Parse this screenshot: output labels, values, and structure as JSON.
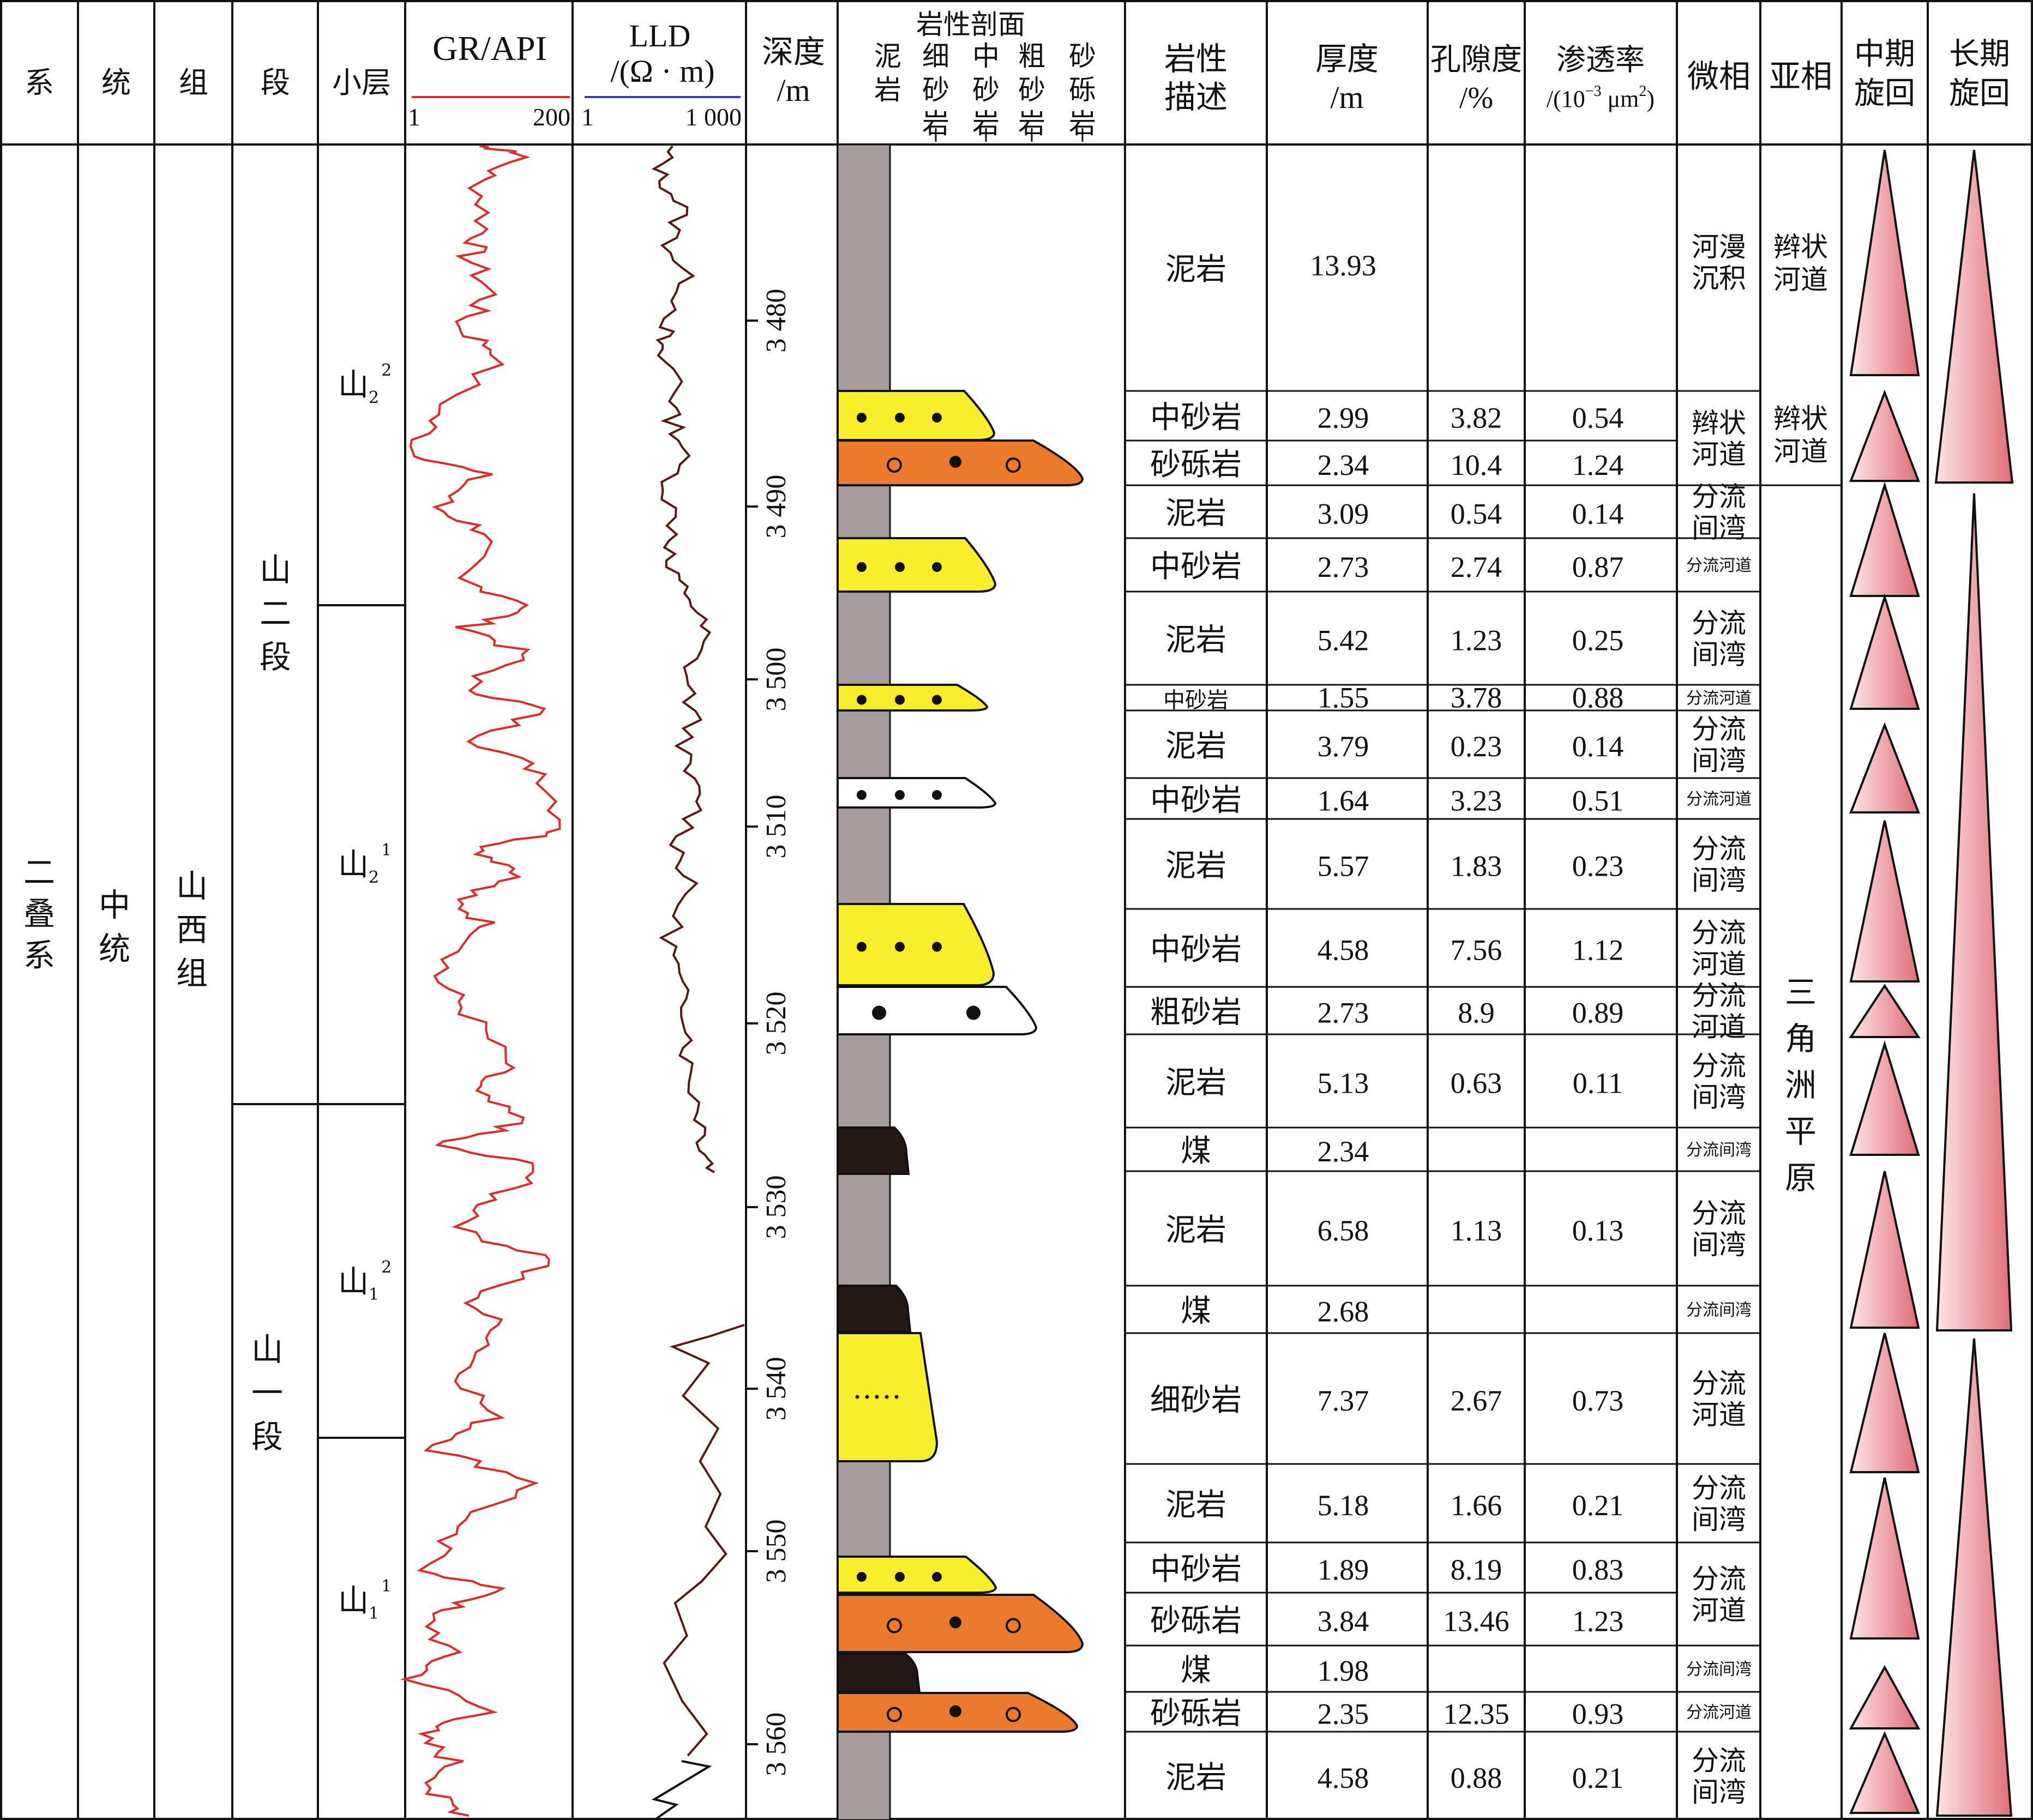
{
  "headers": {
    "xi": "系",
    "tong": "统",
    "zu": "组",
    "duan": "段",
    "xiaoceng": "小层",
    "gr_title": "GR/API",
    "gr_min": "1",
    "gr_max": "200",
    "lld_title_1": "LLD",
    "lld_title_2": "/(Ω · m)",
    "lld_min": "1",
    "lld_max": "1 000",
    "depth_1": "深度",
    "depth_2": "/m",
    "litho_title": "岩性剖面",
    "litho_cols": [
      {
        "chars": [
          "泥",
          "岩"
        ]
      },
      {
        "chars": [
          "细",
          "砂",
          "岩"
        ]
      },
      {
        "chars": [
          "中",
          "砂",
          "岩"
        ]
      },
      {
        "chars": [
          "粗",
          "砂",
          "岩"
        ]
      },
      {
        "chars": [
          "砂",
          "砾",
          "岩"
        ]
      }
    ],
    "desc_1": "岩性",
    "desc_2": "描述",
    "thick_1": "厚度",
    "thick_2": "/m",
    "poro_1": "孔隙度",
    "poro_2": "/%",
    "perm_1": "渗透率",
    "perm_2": "/(10",
    "perm_exp": "−3",
    "perm_3": " μm",
    "perm_exp2": "2",
    "perm_4": ")",
    "micro": "微相",
    "sub": "亚相",
    "mid_1": "中期",
    "mid_2": "旋回",
    "long_1": "长期",
    "long_2": "旋回"
  },
  "strat": {
    "xi": [
      "二",
      "叠",
      "系"
    ],
    "tong": [
      "中",
      "统"
    ],
    "zu": [
      "山",
      "西",
      "组"
    ],
    "duan_upper": [
      "山",
      "二",
      "段"
    ],
    "duan_lower": [
      "山",
      "一",
      "段"
    ],
    "layers": [
      {
        "base": "山",
        "sub": "2",
        "sup": "2"
      },
      {
        "base": "山",
        "sub": "2",
        "sup": "1"
      },
      {
        "base": "山",
        "sub": "1",
        "sup": "2"
      },
      {
        "base": "山",
        "sub": "1",
        "sup": "1"
      }
    ]
  },
  "depth_ticks": [
    "3 480",
    "3 490",
    "3 500",
    "3 510",
    "3 520",
    "3 530",
    "3 540",
    "3 550",
    "3 560"
  ],
  "rows": [
    {
      "desc": "泥岩",
      "thick": "13.93",
      "poro": "",
      "perm": ""
    },
    {
      "desc": "中砂岩",
      "thick": "2.99",
      "poro": "3.82",
      "perm": "0.54"
    },
    {
      "desc": "砂砾岩",
      "thick": "2.34",
      "poro": "10.4",
      "perm": "1.24"
    },
    {
      "desc": "泥岩",
      "thick": "3.09",
      "poro": "0.54",
      "perm": "0.14"
    },
    {
      "desc": "中砂岩",
      "thick": "2.73",
      "poro": "2.74",
      "perm": "0.87"
    },
    {
      "desc": "泥岩",
      "thick": "5.42",
      "poro": "1.23",
      "perm": "0.25"
    },
    {
      "desc": "中砂岩",
      "thick": "1.55",
      "poro": "3.78",
      "perm": "0.88"
    },
    {
      "desc": "泥岩",
      "thick": "3.79",
      "poro": "0.23",
      "perm": "0.14"
    },
    {
      "desc": "中砂岩",
      "thick": "1.64",
      "poro": "3.23",
      "perm": "0.51"
    },
    {
      "desc": "泥岩",
      "thick": "5.57",
      "poro": "1.83",
      "perm": "0.23"
    },
    {
      "desc": "中砂岩",
      "thick": "4.58",
      "poro": "7.56",
      "perm": "1.12"
    },
    {
      "desc": "粗砂岩",
      "thick": "2.73",
      "poro": "8.9",
      "perm": "0.89"
    },
    {
      "desc": "泥岩",
      "thick": "5.13",
      "poro": "0.63",
      "perm": "0.11"
    },
    {
      "desc": "煤",
      "thick": "2.34",
      "poro": "",
      "perm": ""
    },
    {
      "desc": "泥岩",
      "thick": "6.58",
      "poro": "1.13",
      "perm": "0.13"
    },
    {
      "desc": "煤",
      "thick": "2.68",
      "poro": "",
      "perm": ""
    },
    {
      "desc": "细砂岩",
      "thick": "7.37",
      "poro": "2.67",
      "perm": "0.73"
    },
    {
      "desc": "泥岩",
      "thick": "5.18",
      "poro": "1.66",
      "perm": "0.21"
    },
    {
      "desc": "中砂岩",
      "thick": "1.89",
      "poro": "8.19",
      "perm": "0.83"
    },
    {
      "desc": "砂砾岩",
      "thick": "3.84",
      "poro": "13.46",
      "perm": "1.23"
    },
    {
      "desc": "煤",
      "thick": "1.98",
      "poro": "",
      "perm": ""
    },
    {
      "desc": "砂砾岩",
      "thick": "2.35",
      "poro": "12.35",
      "perm": "0.93"
    },
    {
      "desc": "泥岩",
      "thick": "4.58",
      "poro": "0.88",
      "perm": "0.21"
    }
  ],
  "micro": [
    {
      "lines": [
        "河漫",
        "沉积"
      ]
    },
    {
      "lines": [
        "辫状",
        "河道"
      ]
    },
    {
      "lines": [
        "分流",
        "间湾"
      ]
    },
    {
      "lines": [
        "分流河道"
      ]
    },
    {
      "lines": [
        "分流",
        "间湾"
      ]
    },
    {
      "lines": [
        "分流河道"
      ]
    },
    {
      "lines": [
        "分流",
        "间湾"
      ]
    },
    {
      "lines": [
        "分流河道"
      ]
    },
    {
      "lines": [
        "分流",
        "间湾"
      ]
    },
    {
      "lines": [
        "分流",
        "河道"
      ]
    },
    {
      "lines": [
        "分流",
        "河道"
      ]
    },
    {
      "lines": [
        "分流",
        "间湾"
      ]
    },
    {
      "lines": [
        "分流间湾"
      ]
    },
    {
      "lines": [
        "分流",
        "间湾"
      ]
    },
    {
      "lines": [
        "分流间湾"
      ]
    },
    {
      "lines": [
        "分流",
        "河道"
      ]
    },
    {
      "lines": [
        "分流",
        "间湾"
      ]
    },
    {
      "lines": [
        "分流",
        "河道"
      ]
    },
    {
      "lines": [
        "分流间湾"
      ]
    },
    {
      "lines": [
        "分流河道"
      ]
    },
    {
      "lines": [
        "分流",
        "间湾"
      ]
    }
  ],
  "subfacies": [
    {
      "lines": [
        "辫状",
        "河道"
      ]
    },
    {
      "lines": [
        "辫状",
        "河道"
      ]
    },
    {
      "lines": [
        "三",
        "角",
        "洲",
        "平",
        "原"
      ]
    }
  ],
  "colors": {
    "mudstone": "#a59c9b",
    "medium_sand": "#f8ee2c",
    "conglomerate": "#eb7a2c",
    "coal": "#231815",
    "white_sand": "#ffffff",
    "gr_curve": "#e02a2a",
    "lld_curve": "#5a1a14",
    "lld_axis": "#3b3fa0",
    "cycle_fill_light": "#fde4e4",
    "cycle_fill_dark": "#e57b83"
  }
}
